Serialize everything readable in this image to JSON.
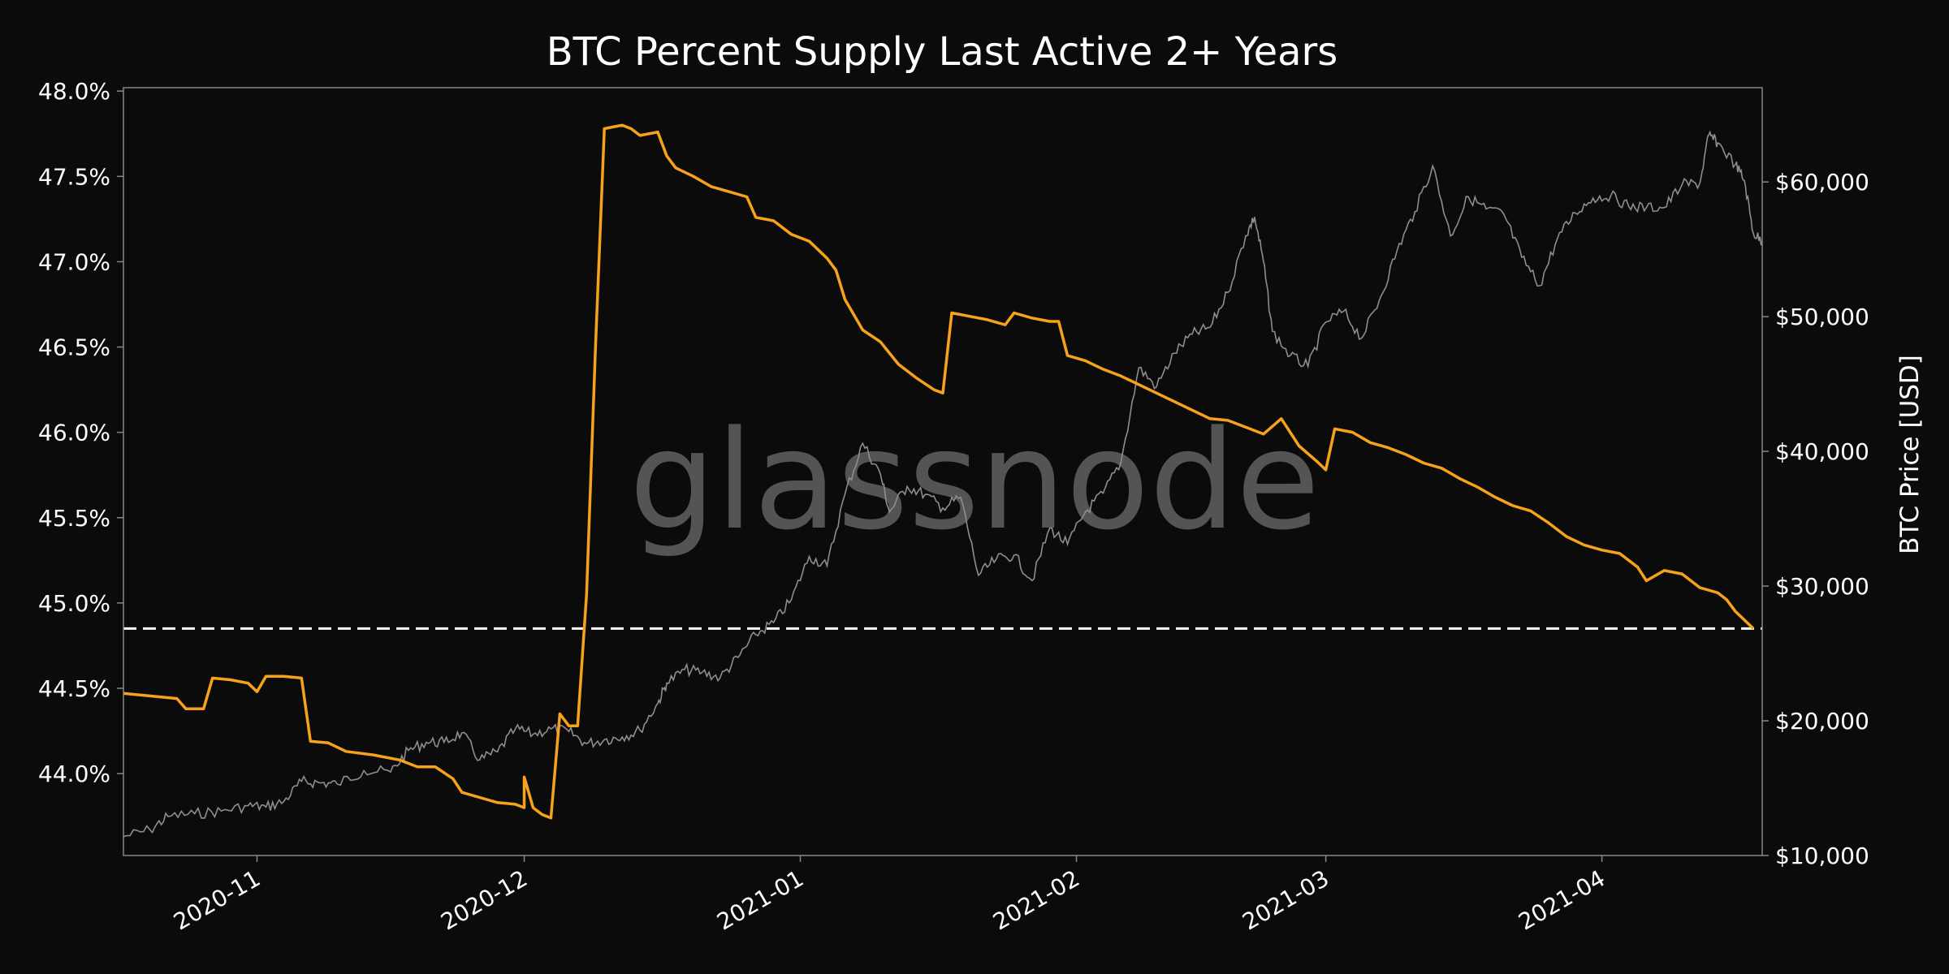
{
  "chart_data": {
    "type": "line",
    "title": "BTC Percent Supply Last Active 2+ Years",
    "watermark": "glassnode",
    "x_range": [
      "2020-10-17",
      "2021-04-19"
    ],
    "x_ticks": [
      "2020-11",
      "2020-12",
      "2021-01",
      "2021-02",
      "2021-03",
      "2021-04"
    ],
    "y_left": {
      "label": "",
      "range": [
        43.52,
        48.02
      ],
      "ticks": [
        44.0,
        44.5,
        45.0,
        45.5,
        46.0,
        46.5,
        47.0,
        47.5,
        48.0
      ],
      "tick_labels": [
        "44.0%",
        "44.5%",
        "45.0%",
        "45.5%",
        "46.0%",
        "46.5%",
        "47.0%",
        "47.5%",
        "48.0%"
      ]
    },
    "y_right": {
      "label": "BTC Price [USD]",
      "range": [
        10000,
        67000
      ],
      "ticks": [
        10000,
        20000,
        30000,
        40000,
        50000,
        60000
      ],
      "tick_labels": [
        "$10,000",
        "$20,000",
        "$30,000",
        "$40,000",
        "$50,000",
        "$60,000"
      ]
    },
    "reference_line": {
      "axis": "left",
      "value": 44.85,
      "style": "dashed",
      "color": "#ffffff"
    },
    "grid": false,
    "series": [
      {
        "axis": "left",
        "color": "#f7a21b",
        "points": [
          [
            "2020-10-17",
            44.47
          ],
          [
            "2020-10-19",
            44.46
          ],
          [
            "2020-10-21",
            44.45
          ],
          [
            "2020-10-23",
            44.44
          ],
          [
            "2020-10-24",
            44.38
          ],
          [
            "2020-10-26",
            44.38
          ],
          [
            "2020-10-27",
            44.56
          ],
          [
            "2020-10-29",
            44.55
          ],
          [
            "2020-10-31",
            44.53
          ],
          [
            "2020-11-01",
            44.48
          ],
          [
            "2020-11-02",
            44.57
          ],
          [
            "2020-11-04",
            44.57
          ],
          [
            "2020-11-06",
            44.56
          ],
          [
            "2020-11-07",
            44.19
          ],
          [
            "2020-11-09",
            44.18
          ],
          [
            "2020-11-11",
            44.13
          ],
          [
            "2020-11-14",
            44.11
          ],
          [
            "2020-11-17",
            44.08
          ],
          [
            "2020-11-19",
            44.04
          ],
          [
            "2020-11-21",
            44.04
          ],
          [
            "2020-11-23",
            43.97
          ],
          [
            "2020-11-24",
            43.89
          ],
          [
            "2020-11-26",
            43.86
          ],
          [
            "2020-11-28",
            43.83
          ],
          [
            "2020-11-30",
            43.82
          ],
          [
            "2020-12-01",
            43.8
          ],
          [
            "2020-12-01",
            43.98
          ],
          [
            "2020-12-02",
            43.8
          ],
          [
            "2020-12-03",
            43.76
          ],
          [
            "2020-12-04",
            43.74
          ],
          [
            "2020-12-05",
            44.35
          ],
          [
            "2020-12-06",
            44.28
          ],
          [
            "2020-12-07",
            44.28
          ],
          [
            "2020-12-08",
            45.05
          ],
          [
            "2020-12-09",
            46.5
          ],
          [
            "2020-12-10",
            47.78
          ],
          [
            "2020-12-12",
            47.8
          ],
          [
            "2020-12-13",
            47.78
          ],
          [
            "2020-12-14",
            47.74
          ],
          [
            "2020-12-16",
            47.76
          ],
          [
            "2020-12-17",
            47.62
          ],
          [
            "2020-12-18",
            47.55
          ],
          [
            "2020-12-20",
            47.5
          ],
          [
            "2020-12-22",
            47.44
          ],
          [
            "2020-12-24",
            47.41
          ],
          [
            "2020-12-26",
            47.38
          ],
          [
            "2020-12-27",
            47.26
          ],
          [
            "2020-12-29",
            47.24
          ],
          [
            "2020-12-31",
            47.16
          ],
          [
            "2021-01-02",
            47.12
          ],
          [
            "2021-01-04",
            47.02
          ],
          [
            "2021-01-05",
            46.95
          ],
          [
            "2021-01-06",
            46.78
          ],
          [
            "2021-01-08",
            46.6
          ],
          [
            "2021-01-10",
            46.53
          ],
          [
            "2021-01-12",
            46.4
          ],
          [
            "2021-01-14",
            46.32
          ],
          [
            "2021-01-16",
            46.25
          ],
          [
            "2021-01-17",
            46.23
          ],
          [
            "2021-01-18",
            46.7
          ],
          [
            "2021-01-20",
            46.68
          ],
          [
            "2021-01-22",
            46.66
          ],
          [
            "2021-01-24",
            46.63
          ],
          [
            "2021-01-25",
            46.7
          ],
          [
            "2021-01-27",
            46.67
          ],
          [
            "2021-01-29",
            46.65
          ],
          [
            "2021-01-30",
            46.65
          ],
          [
            "2021-01-31",
            46.45
          ],
          [
            "2021-02-02",
            46.42
          ],
          [
            "2021-02-04",
            46.37
          ],
          [
            "2021-02-06",
            46.33
          ],
          [
            "2021-02-08",
            46.28
          ],
          [
            "2021-02-10",
            46.23
          ],
          [
            "2021-02-12",
            46.18
          ],
          [
            "2021-02-14",
            46.13
          ],
          [
            "2021-02-16",
            46.08
          ],
          [
            "2021-02-18",
            46.07
          ],
          [
            "2021-02-20",
            46.03
          ],
          [
            "2021-02-22",
            45.99
          ],
          [
            "2021-02-24",
            46.08
          ],
          [
            "2021-02-26",
            45.92
          ],
          [
            "2021-02-28",
            45.83
          ],
          [
            "2021-03-01",
            45.78
          ],
          [
            "2021-03-02",
            46.02
          ],
          [
            "2021-03-04",
            46.0
          ],
          [
            "2021-03-06",
            45.94
          ],
          [
            "2021-03-08",
            45.91
          ],
          [
            "2021-03-10",
            45.87
          ],
          [
            "2021-03-12",
            45.82
          ],
          [
            "2021-03-14",
            45.79
          ],
          [
            "2021-03-16",
            45.73
          ],
          [
            "2021-03-18",
            45.68
          ],
          [
            "2021-03-20",
            45.62
          ],
          [
            "2021-03-22",
            45.57
          ],
          [
            "2021-03-24",
            45.54
          ],
          [
            "2021-03-26",
            45.47
          ],
          [
            "2021-03-28",
            45.39
          ],
          [
            "2021-03-30",
            45.34
          ],
          [
            "2021-04-01",
            45.31
          ],
          [
            "2021-04-03",
            45.29
          ],
          [
            "2021-04-05",
            45.21
          ],
          [
            "2021-04-06",
            45.13
          ],
          [
            "2021-04-08",
            45.19
          ],
          [
            "2021-04-10",
            45.17
          ],
          [
            "2021-04-12",
            45.09
          ],
          [
            "2021-04-14",
            45.06
          ],
          [
            "2021-04-15",
            45.02
          ],
          [
            "2021-04-16",
            44.95
          ],
          [
            "2021-04-17",
            44.9
          ],
          [
            "2021-04-18",
            44.85
          ]
        ]
      },
      {
        "axis": "right",
        "color": "#8e8e8e",
        "points": [
          [
            "2020-10-17",
            11400
          ],
          [
            "2020-10-20",
            11900
          ],
          [
            "2020-10-22",
            12900
          ],
          [
            "2020-10-25",
            13100
          ],
          [
            "2020-10-28",
            13300
          ],
          [
            "2020-10-31",
            13700
          ],
          [
            "2020-11-02",
            13600
          ],
          [
            "2020-11-04",
            14000
          ],
          [
            "2020-11-06",
            15500
          ],
          [
            "2020-11-08",
            15400
          ],
          [
            "2020-11-10",
            15300
          ],
          [
            "2020-11-13",
            16300
          ],
          [
            "2020-11-16",
            16200
          ],
          [
            "2020-11-18",
            17800
          ],
          [
            "2020-11-20",
            18400
          ],
          [
            "2020-11-22",
            18400
          ],
          [
            "2020-11-24",
            19100
          ],
          [
            "2020-11-26",
            17100
          ],
          [
            "2020-11-28",
            17700
          ],
          [
            "2020-11-30",
            19400
          ],
          [
            "2020-12-02",
            19000
          ],
          [
            "2020-12-04",
            19400
          ],
          [
            "2020-12-06",
            19200
          ],
          [
            "2020-12-08",
            18300
          ],
          [
            "2020-12-10",
            18600
          ],
          [
            "2020-12-12",
            18800
          ],
          [
            "2020-12-14",
            19300
          ],
          [
            "2020-12-16",
            21300
          ],
          [
            "2020-12-17",
            22800
          ],
          [
            "2020-12-19",
            23800
          ],
          [
            "2020-12-21",
            23600
          ],
          [
            "2020-12-23",
            23200
          ],
          [
            "2020-12-25",
            24700
          ],
          [
            "2020-12-27",
            26400
          ],
          [
            "2020-12-29",
            27300
          ],
          [
            "2020-12-31",
            29000
          ],
          [
            "2021-01-02",
            32200
          ],
          [
            "2021-01-04",
            31500
          ],
          [
            "2021-01-06",
            36800
          ],
          [
            "2021-01-08",
            40600
          ],
          [
            "2021-01-10",
            38300
          ],
          [
            "2021-01-11",
            35500
          ],
          [
            "2021-01-13",
            37400
          ],
          [
            "2021-01-15",
            36800
          ],
          [
            "2021-01-17",
            35800
          ],
          [
            "2021-01-19",
            36600
          ],
          [
            "2021-01-21",
            30800
          ],
          [
            "2021-01-23",
            32000
          ],
          [
            "2021-01-25",
            32300
          ],
          [
            "2021-01-27",
            30400
          ],
          [
            "2021-01-29",
            34300
          ],
          [
            "2021-01-31",
            33100
          ],
          [
            "2021-02-02",
            35500
          ],
          [
            "2021-02-04",
            36900
          ],
          [
            "2021-02-06",
            39200
          ],
          [
            "2021-02-08",
            46200
          ],
          [
            "2021-02-10",
            44800
          ],
          [
            "2021-02-12",
            47300
          ],
          [
            "2021-02-14",
            48700
          ],
          [
            "2021-02-16",
            49200
          ],
          [
            "2021-02-18",
            51800
          ],
          [
            "2021-02-20",
            56000
          ],
          [
            "2021-02-21",
            57400
          ],
          [
            "2021-02-22",
            54100
          ],
          [
            "2021-02-23",
            48900
          ],
          [
            "2021-02-25",
            47100
          ],
          [
            "2021-02-27",
            46300
          ],
          [
            "2021-03-01",
            49600
          ],
          [
            "2021-03-03",
            50400
          ],
          [
            "2021-03-05",
            48400
          ],
          [
            "2021-03-07",
            51200
          ],
          [
            "2021-03-09",
            54900
          ],
          [
            "2021-03-11",
            57800
          ],
          [
            "2021-03-13",
            61200
          ],
          [
            "2021-03-15",
            56000
          ],
          [
            "2021-03-17",
            58900
          ],
          [
            "2021-03-19",
            58000
          ],
          [
            "2021-03-21",
            57600
          ],
          [
            "2021-03-23",
            54400
          ],
          [
            "2021-03-25",
            52300
          ],
          [
            "2021-03-27",
            55800
          ],
          [
            "2021-03-29",
            57700
          ],
          [
            "2021-03-31",
            58800
          ],
          [
            "2021-04-02",
            59000
          ],
          [
            "2021-04-04",
            58200
          ],
          [
            "2021-04-06",
            58100
          ],
          [
            "2021-04-08",
            58100
          ],
          [
            "2021-04-10",
            59800
          ],
          [
            "2021-04-12",
            59900
          ],
          [
            "2021-04-13",
            63500
          ],
          [
            "2021-04-14",
            62900
          ],
          [
            "2021-04-16",
            61300
          ],
          [
            "2021-04-17",
            60100
          ],
          [
            "2021-04-18",
            56200
          ],
          [
            "2021-04-19",
            55600
          ]
        ]
      }
    ]
  }
}
